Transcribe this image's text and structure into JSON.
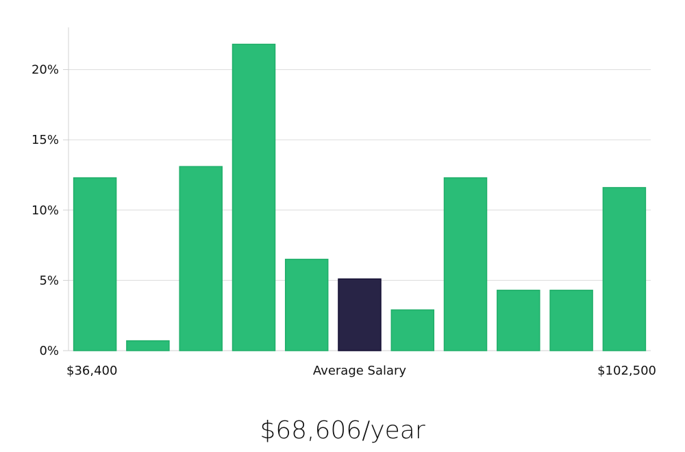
{
  "chart_data": {
    "type": "bar",
    "title": "",
    "xlabel": "Average Salary",
    "ylabel": "",
    "x_range_labels": {
      "min": "$36,400",
      "center": "Average Salary",
      "max": "$102,500"
    },
    "ylim": [
      0,
      23
    ],
    "yticks": [
      0,
      5,
      10,
      15,
      20
    ],
    "ytick_labels": [
      "0%",
      "5%",
      "10%",
      "15%",
      "20%"
    ],
    "grid": true,
    "values": [
      12.3,
      0.7,
      13.1,
      21.8,
      6.5,
      5.1,
      2.9,
      12.3,
      4.3,
      4.3,
      11.6
    ],
    "highlight_index": 5,
    "colors": {
      "bar": "#2abd77",
      "bar_stroke": "#1fae69",
      "highlight": "#282446",
      "highlight_stroke": "#140f33"
    }
  },
  "summary": {
    "salary_text": "$68,606/year"
  }
}
